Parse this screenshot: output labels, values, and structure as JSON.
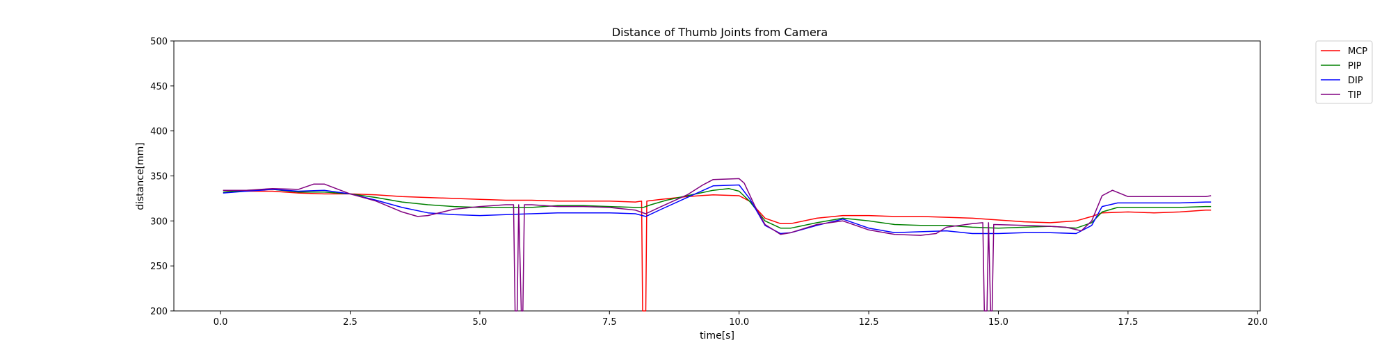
{
  "chart_data": {
    "type": "line",
    "title": "Distance of Thumb Joints from Camera",
    "xlabel": "time[s]",
    "ylabel": "distance[mm]",
    "xlim": [
      -0.9,
      20.05
    ],
    "ylim": [
      200,
      500
    ],
    "xticks": [
      0.0,
      2.5,
      5.0,
      7.5,
      10.0,
      12.5,
      15.0,
      17.5,
      20.0
    ],
    "xtick_labels": [
      "0.0",
      "2.5",
      "5.0",
      "7.5",
      "10.0",
      "12.5",
      "15.0",
      "17.5",
      "20.0"
    ],
    "yticks": [
      200,
      250,
      300,
      350,
      400,
      450,
      500
    ],
    "ytick_labels": [
      "200",
      "250",
      "300",
      "350",
      "400",
      "450",
      "500"
    ],
    "grid": false,
    "legend_position": "outside-top-right",
    "series": [
      {
        "name": "MCP",
        "color": "#ff0000",
        "points": [
          [
            0.05,
            334
          ],
          [
            0.5,
            333
          ],
          [
            1.0,
            333
          ],
          [
            1.5,
            331
          ],
          [
            2.0,
            330
          ],
          [
            2.5,
            330
          ],
          [
            3.0,
            329
          ],
          [
            3.5,
            327
          ],
          [
            4.0,
            326
          ],
          [
            4.5,
            325
          ],
          [
            5.0,
            324
          ],
          [
            5.5,
            323
          ],
          [
            6.0,
            323
          ],
          [
            6.5,
            322
          ],
          [
            7.0,
            322
          ],
          [
            7.5,
            322
          ],
          [
            8.0,
            321
          ],
          [
            8.12,
            322
          ],
          [
            8.14,
            200
          ],
          [
            8.2,
            200
          ],
          [
            8.22,
            322
          ],
          [
            8.5,
            324
          ],
          [
            9.0,
            327
          ],
          [
            9.5,
            329
          ],
          [
            10.0,
            328
          ],
          [
            10.2,
            322
          ],
          [
            10.5,
            303
          ],
          [
            10.8,
            297
          ],
          [
            11.0,
            297
          ],
          [
            11.5,
            303
          ],
          [
            12.0,
            306
          ],
          [
            12.5,
            306
          ],
          [
            13.0,
            305
          ],
          [
            13.5,
            305
          ],
          [
            14.0,
            304
          ],
          [
            14.5,
            303
          ],
          [
            15.0,
            301
          ],
          [
            15.5,
            299
          ],
          [
            16.0,
            298
          ],
          [
            16.5,
            300
          ],
          [
            16.8,
            305
          ],
          [
            17.0,
            309
          ],
          [
            17.5,
            310
          ],
          [
            18.0,
            309
          ],
          [
            18.5,
            310
          ],
          [
            19.0,
            312
          ],
          [
            19.1,
            312
          ]
        ]
      },
      {
        "name": "PIP",
        "color": "#008000",
        "points": [
          [
            0.05,
            332
          ],
          [
            0.5,
            334
          ],
          [
            1.0,
            335
          ],
          [
            1.5,
            332
          ],
          [
            2.0,
            332
          ],
          [
            2.5,
            330
          ],
          [
            3.0,
            326
          ],
          [
            3.5,
            321
          ],
          [
            4.0,
            318
          ],
          [
            4.5,
            316
          ],
          [
            5.0,
            315
          ],
          [
            5.5,
            315
          ],
          [
            6.0,
            315
          ],
          [
            6.5,
            317
          ],
          [
            7.0,
            317
          ],
          [
            7.5,
            316
          ],
          [
            8.0,
            315
          ],
          [
            8.15,
            315
          ],
          [
            8.3,
            318
          ],
          [
            8.6,
            323
          ],
          [
            9.0,
            328
          ],
          [
            9.5,
            334
          ],
          [
            9.8,
            336
          ],
          [
            10.0,
            333
          ],
          [
            10.2,
            322
          ],
          [
            10.5,
            300
          ],
          [
            10.8,
            292
          ],
          [
            11.0,
            292
          ],
          [
            11.5,
            298
          ],
          [
            12.0,
            303
          ],
          [
            12.5,
            300
          ],
          [
            13.0,
            296
          ],
          [
            13.5,
            295
          ],
          [
            14.0,
            295
          ],
          [
            14.5,
            293
          ],
          [
            15.0,
            292
          ],
          [
            15.5,
            293
          ],
          [
            16.0,
            294
          ],
          [
            16.5,
            292
          ],
          [
            16.8,
            298
          ],
          [
            17.0,
            310
          ],
          [
            17.3,
            315
          ],
          [
            17.5,
            315
          ],
          [
            18.0,
            315
          ],
          [
            18.5,
            315
          ],
          [
            19.0,
            316
          ],
          [
            19.1,
            316
          ]
        ]
      },
      {
        "name": "DIP",
        "color": "#0000ff",
        "points": [
          [
            0.05,
            331
          ],
          [
            0.5,
            333
          ],
          [
            1.0,
            335
          ],
          [
            1.5,
            333
          ],
          [
            2.0,
            334
          ],
          [
            2.5,
            330
          ],
          [
            3.0,
            323
          ],
          [
            3.5,
            315
          ],
          [
            4.0,
            309
          ],
          [
            4.5,
            307
          ],
          [
            5.0,
            306
          ],
          [
            5.5,
            307
          ],
          [
            6.0,
            308
          ],
          [
            6.5,
            309
          ],
          [
            7.0,
            309
          ],
          [
            7.5,
            309
          ],
          [
            8.0,
            308
          ],
          [
            8.2,
            305
          ],
          [
            8.5,
            313
          ],
          [
            9.0,
            326
          ],
          [
            9.5,
            339
          ],
          [
            10.0,
            340
          ],
          [
            10.2,
            325
          ],
          [
            10.5,
            295
          ],
          [
            10.8,
            286
          ],
          [
            11.0,
            287
          ],
          [
            11.5,
            295
          ],
          [
            12.0,
            302
          ],
          [
            12.5,
            292
          ],
          [
            13.0,
            287
          ],
          [
            13.5,
            288
          ],
          [
            14.0,
            289
          ],
          [
            14.5,
            286
          ],
          [
            15.0,
            286
          ],
          [
            15.5,
            287
          ],
          [
            16.0,
            287
          ],
          [
            16.5,
            286
          ],
          [
            16.8,
            295
          ],
          [
            17.0,
            316
          ],
          [
            17.3,
            320
          ],
          [
            17.5,
            320
          ],
          [
            18.0,
            320
          ],
          [
            18.5,
            320
          ],
          [
            19.0,
            321
          ],
          [
            19.1,
            321
          ]
        ]
      },
      {
        "name": "TIP",
        "color": "#800080",
        "points": [
          [
            0.05,
            334
          ],
          [
            0.5,
            334
          ],
          [
            1.0,
            336
          ],
          [
            1.5,
            335
          ],
          [
            1.8,
            341
          ],
          [
            2.0,
            341
          ],
          [
            2.5,
            330
          ],
          [
            3.0,
            322
          ],
          [
            3.5,
            310
          ],
          [
            3.8,
            305
          ],
          [
            4.0,
            306
          ],
          [
            4.5,
            313
          ],
          [
            5.0,
            316
          ],
          [
            5.5,
            318
          ],
          [
            5.65,
            318
          ],
          [
            5.68,
            200
          ],
          [
            5.72,
            200
          ],
          [
            5.75,
            318
          ],
          [
            5.8,
            200
          ],
          [
            5.83,
            200
          ],
          [
            5.86,
            318
          ],
          [
            6.0,
            318
          ],
          [
            6.5,
            316
          ],
          [
            7.0,
            316
          ],
          [
            7.5,
            315
          ],
          [
            8.0,
            312
          ],
          [
            8.2,
            308
          ],
          [
            8.5,
            316
          ],
          [
            9.0,
            329
          ],
          [
            9.3,
            340
          ],
          [
            9.5,
            346
          ],
          [
            10.0,
            347
          ],
          [
            10.1,
            342
          ],
          [
            10.3,
            317
          ],
          [
            10.5,
            296
          ],
          [
            10.8,
            285
          ],
          [
            11.0,
            287
          ],
          [
            11.5,
            296
          ],
          [
            12.0,
            300
          ],
          [
            12.5,
            290
          ],
          [
            13.0,
            285
          ],
          [
            13.5,
            284
          ],
          [
            13.8,
            286
          ],
          [
            14.0,
            293
          ],
          [
            14.5,
            297
          ],
          [
            14.7,
            298
          ],
          [
            14.73,
            200
          ],
          [
            14.78,
            200
          ],
          [
            14.81,
            298
          ],
          [
            14.85,
            200
          ],
          [
            14.88,
            200
          ],
          [
            14.91,
            296
          ],
          [
            15.5,
            295
          ],
          [
            16.0,
            294
          ],
          [
            16.3,
            293
          ],
          [
            16.6,
            289
          ],
          [
            16.8,
            300
          ],
          [
            17.0,
            328
          ],
          [
            17.2,
            334
          ],
          [
            17.5,
            327
          ],
          [
            18.0,
            327
          ],
          [
            18.5,
            327
          ],
          [
            19.0,
            327
          ],
          [
            19.1,
            328
          ]
        ]
      }
    ]
  }
}
